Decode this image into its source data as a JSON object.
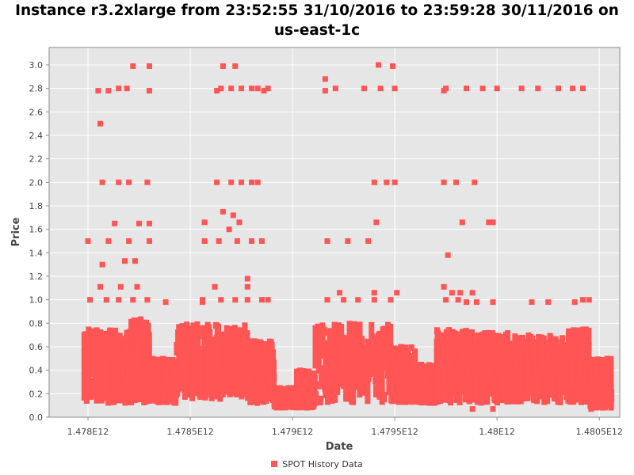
{
  "chart_data": {
    "type": "scatter",
    "title_line1": "Instance r3.2xlarge from 23:52:55 31/10/2016 to 23:59:28 30/11/2016 on",
    "title_line2": "us-east-1c",
    "xlabel": "Date",
    "ylabel": "Price",
    "xlim": [
      1477810000000,
      1480600000000
    ],
    "ylim": [
      0.0,
      3.1
    ],
    "x_ticks": [
      1478000000000,
      1478500000000,
      1479000000000,
      1479500000000,
      1480000000000,
      1480500000000
    ],
    "x_tick_labels": [
      "1.478E12",
      "1.4785E12",
      "1.479E12",
      "1.4795E12",
      "1.48E12",
      "1.4805E12"
    ],
    "y_ticks": [
      0.0,
      0.2,
      0.4,
      0.6,
      0.8,
      1.0,
      1.2,
      1.4,
      1.6,
      1.8,
      2.0,
      2.2,
      2.4,
      2.6,
      2.8,
      3.0
    ],
    "y_tick_labels": [
      "0.0",
      "0.2",
      "0.4",
      "0.6",
      "0.8",
      "1.0",
      "1.2",
      "1.4",
      "1.6",
      "1.8",
      "2.0",
      "2.2",
      "2.4",
      "2.6",
      "2.8",
      "3.0"
    ],
    "grid": true,
    "legend_position": "bottom",
    "series_color": "#FF5555",
    "plot_background": "#E6E6E6",
    "series": [
      {
        "name": "SPOT History Data",
        "clusters": [
          {
            "x0": 1477980000000,
            "x1": 1478210000000,
            "y_min": 0.12,
            "y_max": 0.75
          },
          {
            "x0": 1478210000000,
            "x1": 1478300000000,
            "y_min": 0.12,
            "y_max": 0.84
          },
          {
            "x0": 1478300000000,
            "x1": 1478430000000,
            "y_min": 0.12,
            "y_max": 0.5
          },
          {
            "x0": 1478430000000,
            "x1": 1478780000000,
            "y_min": 0.15,
            "y_max": 0.8
          },
          {
            "x0": 1478780000000,
            "x1": 1478910000000,
            "y_min": 0.12,
            "y_max": 0.65
          },
          {
            "x0": 1478910000000,
            "x1": 1479020000000,
            "y_min": 0.08,
            "y_max": 0.25
          },
          {
            "x0": 1479020000000,
            "x1": 1479110000000,
            "y_min": 0.08,
            "y_max": 0.4
          },
          {
            "x0": 1479110000000,
            "x1": 1479480000000,
            "y_min": 0.12,
            "y_max": 0.8
          },
          {
            "x0": 1479480000000,
            "x1": 1479600000000,
            "y_min": 0.12,
            "y_max": 0.6
          },
          {
            "x0": 1479600000000,
            "x1": 1479700000000,
            "y_min": 0.12,
            "y_max": 0.45
          },
          {
            "x0": 1479700000000,
            "x1": 1479900000000,
            "y_min": 0.12,
            "y_max": 0.75
          },
          {
            "x0": 1479900000000,
            "x1": 1480120000000,
            "y_min": 0.12,
            "y_max": 0.72
          },
          {
            "x0": 1480120000000,
            "x1": 1480350000000,
            "y_min": 0.12,
            "y_max": 0.7
          },
          {
            "x0": 1480350000000,
            "x1": 1480450000000,
            "y_min": 0.12,
            "y_max": 0.75
          },
          {
            "x0": 1480450000000,
            "x1": 1480560000000,
            "y_min": 0.08,
            "y_max": 0.5
          }
        ],
        "points": [
          [
            1478060000000,
            2.5
          ],
          [
            1478100000000,
            2.78
          ],
          [
            1478050000000,
            2.78
          ],
          [
            1478150000000,
            2.8
          ],
          [
            1478190000000,
            2.8
          ],
          [
            1478220000000,
            2.99
          ],
          [
            1478300000000,
            2.99
          ],
          [
            1478300000000,
            2.78
          ],
          [
            1478000000000,
            1.5
          ],
          [
            1478100000000,
            1.5
          ],
          [
            1478130000000,
            1.65
          ],
          [
            1478200000000,
            1.5
          ],
          [
            1478250000000,
            1.65
          ],
          [
            1478300000000,
            1.65
          ],
          [
            1478300000000,
            1.5
          ],
          [
            1478070000000,
            2.0
          ],
          [
            1478150000000,
            2.0
          ],
          [
            1478200000000,
            2.0
          ],
          [
            1478290000000,
            2.0
          ],
          [
            1478070000000,
            1.3
          ],
          [
            1478180000000,
            1.33
          ],
          [
            1478230000000,
            1.33
          ],
          [
            1478160000000,
            1.11
          ],
          [
            1478240000000,
            1.11
          ],
          [
            1478060000000,
            1.11
          ],
          [
            1478010000000,
            1.0
          ],
          [
            1478090000000,
            1.0
          ],
          [
            1478150000000,
            1.0
          ],
          [
            1478220000000,
            1.0
          ],
          [
            1478290000000,
            1.0
          ],
          [
            1478380000000,
            0.98
          ],
          [
            1478650000000,
            2.8
          ],
          [
            1478700000000,
            2.8
          ],
          [
            1478750000000,
            2.8
          ],
          [
            1478800000000,
            2.8
          ],
          [
            1478830000000,
            2.8
          ],
          [
            1478880000000,
            2.8
          ],
          [
            1478630000000,
            2.78
          ],
          [
            1478860000000,
            2.78
          ],
          [
            1478660000000,
            2.99
          ],
          [
            1478720000000,
            2.99
          ],
          [
            1478630000000,
            2.0
          ],
          [
            1478700000000,
            2.0
          ],
          [
            1478750000000,
            2.0
          ],
          [
            1478800000000,
            2.0
          ],
          [
            1478830000000,
            2.0
          ],
          [
            1478660000000,
            1.75
          ],
          [
            1478710000000,
            1.72
          ],
          [
            1478690000000,
            1.6
          ],
          [
            1478740000000,
            1.66
          ],
          [
            1478570000000,
            1.66
          ],
          [
            1478570000000,
            1.5
          ],
          [
            1478640000000,
            1.5
          ],
          [
            1478730000000,
            1.5
          ],
          [
            1478800000000,
            1.5
          ],
          [
            1478850000000,
            1.5
          ],
          [
            1478780000000,
            1.18
          ],
          [
            1478780000000,
            1.11
          ],
          [
            1478620000000,
            1.11
          ],
          [
            1478560000000,
            1.0
          ],
          [
            1478650000000,
            1.0
          ],
          [
            1478720000000,
            1.0
          ],
          [
            1478780000000,
            1.0
          ],
          [
            1478850000000,
            1.0
          ],
          [
            1478880000000,
            1.0
          ],
          [
            1478560000000,
            0.98
          ],
          [
            1479160000000,
            2.88
          ],
          [
            1479210000000,
            2.8
          ],
          [
            1479350000000,
            2.8
          ],
          [
            1479430000000,
            2.8
          ],
          [
            1479500000000,
            2.8
          ],
          [
            1479160000000,
            2.78
          ],
          [
            1479420000000,
            3.0
          ],
          [
            1479490000000,
            2.99
          ],
          [
            1479400000000,
            2.0
          ],
          [
            1479460000000,
            2.0
          ],
          [
            1479500000000,
            2.0
          ],
          [
            1479410000000,
            1.66
          ],
          [
            1479170000000,
            1.5
          ],
          [
            1479270000000,
            1.5
          ],
          [
            1479370000000,
            1.5
          ],
          [
            1479230000000,
            1.06
          ],
          [
            1479400000000,
            1.06
          ],
          [
            1479510000000,
            1.06
          ],
          [
            1479170000000,
            1.0
          ],
          [
            1479250000000,
            1.0
          ],
          [
            1479320000000,
            1.0
          ],
          [
            1479400000000,
            1.0
          ],
          [
            1479480000000,
            1.0
          ],
          [
            1479750000000,
            2.8
          ],
          [
            1479850000000,
            2.8
          ],
          [
            1479930000000,
            2.8
          ],
          [
            1480000000000,
            2.8
          ],
          [
            1480120000000,
            2.8
          ],
          [
            1480200000000,
            2.8
          ],
          [
            1480300000000,
            2.8
          ],
          [
            1480370000000,
            2.8
          ],
          [
            1480420000000,
            2.8
          ],
          [
            1479740000000,
            2.78
          ],
          [
            1479740000000,
            2.0
          ],
          [
            1479800000000,
            2.0
          ],
          [
            1479890000000,
            2.0
          ],
          [
            1479830000000,
            1.66
          ],
          [
            1479960000000,
            1.66
          ],
          [
            1479980000000,
            1.66
          ],
          [
            1479760000000,
            1.38
          ],
          [
            1479740000000,
            1.11
          ],
          [
            1479780000000,
            1.06
          ],
          [
            1479820000000,
            1.06
          ],
          [
            1479880000000,
            1.06
          ],
          [
            1479750000000,
            1.0
          ],
          [
            1479810000000,
            1.0
          ],
          [
            1479850000000,
            0.98
          ],
          [
            1479900000000,
            0.98
          ],
          [
            1479980000000,
            0.98
          ],
          [
            1480170000000,
            0.98
          ],
          [
            1480250000000,
            0.98
          ],
          [
            1480380000000,
            0.98
          ],
          [
            1480450000000,
            1.0
          ],
          [
            1480420000000,
            1.0
          ],
          [
            1479880000000,
            0.07
          ],
          [
            1479980000000,
            0.07
          ],
          [
            1480460000000,
            0.07
          ]
        ]
      }
    ]
  }
}
